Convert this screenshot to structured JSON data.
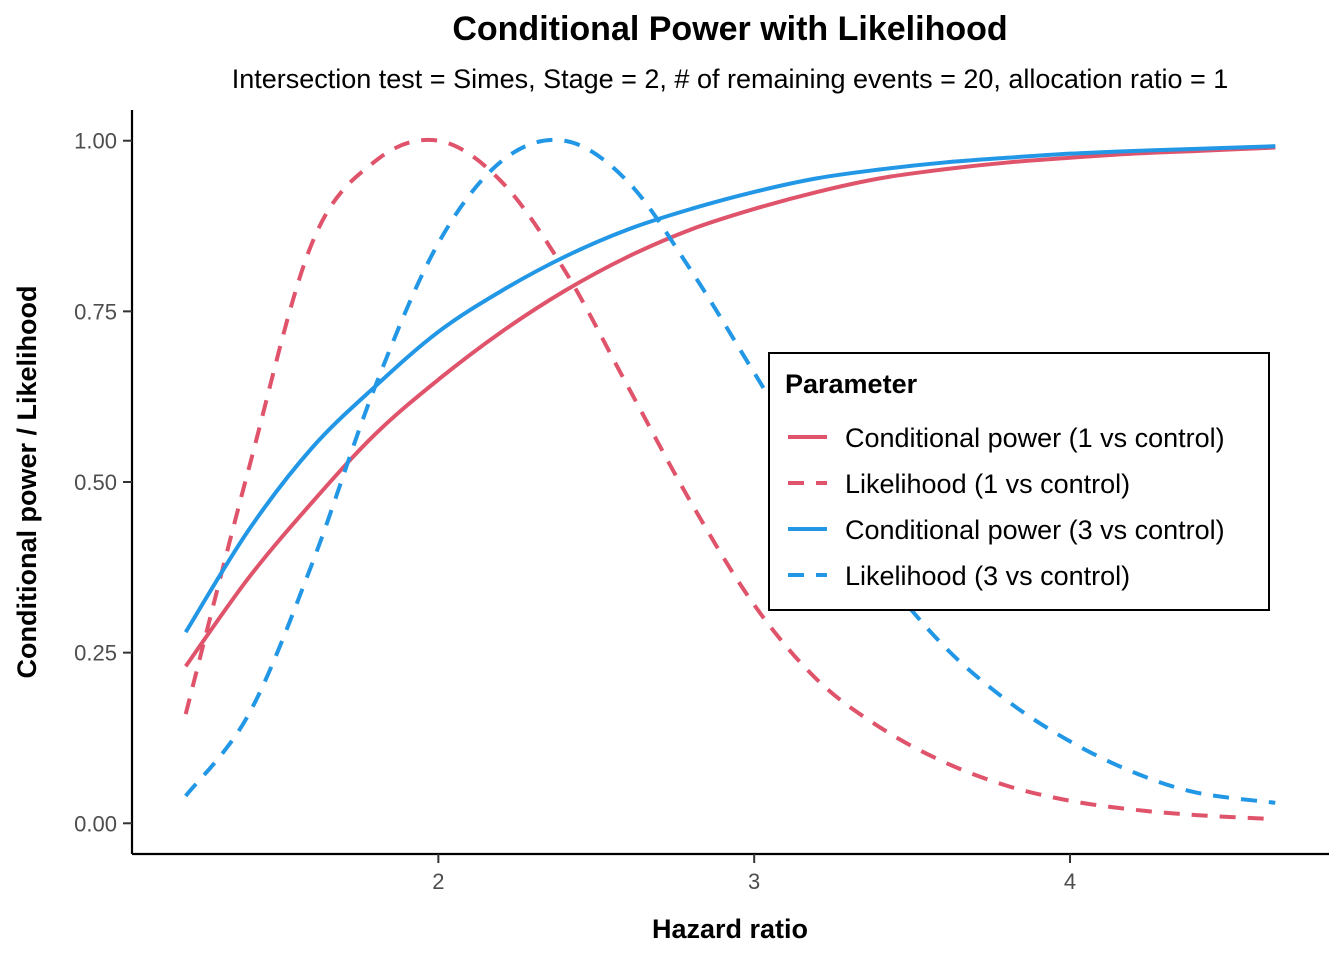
{
  "chart_data": {
    "type": "line",
    "title": "Conditional Power with Likelihood",
    "subtitle": "Intersection test = Simes, Stage = 2, # of remaining events = 20, allocation ratio = 1",
    "xlabel": "Hazard ratio",
    "ylabel": "Conditional power / Likelihood",
    "xlim": [
      1.03,
      4.82
    ],
    "ylim": [
      -0.045,
      1.045
    ],
    "x_ticks": [
      2,
      3,
      4
    ],
    "x_tick_labels": [
      "2",
      "3",
      "4"
    ],
    "y_ticks": [
      0,
      0.25,
      0.5,
      0.75,
      1
    ],
    "y_tick_labels": [
      "0.00",
      "0.25",
      "0.50",
      "0.75",
      "1.00"
    ],
    "grid": false,
    "legend": {
      "title": "Parameter",
      "position": "right"
    },
    "x": [
      1.2,
      1.4,
      1.6,
      1.8,
      2.0,
      2.2,
      2.4,
      2.6,
      2.8,
      3.0,
      3.2,
      3.4,
      3.6,
      3.8,
      4.0,
      4.2,
      4.4,
      4.65
    ],
    "series": [
      {
        "name": "Conditional power (1 vs control)",
        "color": "#df536b",
        "dash": "solid",
        "values": [
          0.23,
          0.36,
          0.47,
          0.57,
          0.65,
          0.72,
          0.78,
          0.83,
          0.87,
          0.9,
          0.925,
          0.945,
          0.958,
          0.968,
          0.975,
          0.981,
          0.985,
          0.99
        ]
      },
      {
        "name": "Likelihood (1 vs control)",
        "color": "#df536b",
        "dash": "dashed",
        "values": [
          0.16,
          0.52,
          0.85,
          0.97,
          1.0,
          0.94,
          0.81,
          0.64,
          0.47,
          0.32,
          0.21,
          0.14,
          0.09,
          0.055,
          0.033,
          0.02,
          0.012,
          0.006
        ]
      },
      {
        "name": "Conditional power (3 vs control)",
        "color": "#2297e6",
        "dash": "solid",
        "values": [
          0.28,
          0.43,
          0.55,
          0.64,
          0.72,
          0.78,
          0.83,
          0.87,
          0.9,
          0.925,
          0.945,
          0.958,
          0.968,
          0.975,
          0.981,
          0.985,
          0.988,
          0.992
        ]
      },
      {
        "name": "Likelihood (3 vs control)",
        "color": "#2297e6",
        "dash": "dashed",
        "values": [
          0.04,
          0.16,
          0.38,
          0.64,
          0.85,
          0.97,
          1.0,
          0.94,
          0.81,
          0.66,
          0.51,
          0.37,
          0.26,
          0.18,
          0.12,
          0.075,
          0.045,
          0.03
        ]
      }
    ]
  }
}
